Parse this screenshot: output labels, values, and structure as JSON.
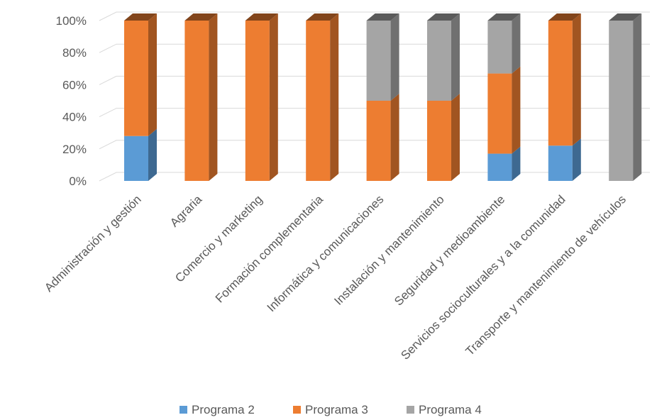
{
  "chart_data": {
    "type": "bar",
    "stacked": "percent",
    "categories": [
      "Administración y gestión",
      "Agraria",
      "Comercio y marketing",
      "Formación complementaria",
      "Informática y comunicaciones",
      "Instalación y mantenimiento",
      "Seguridad y medioambiente",
      "Servicios socioculturales y a la comunidad",
      "Transporte y mantenimiento de vehículos"
    ],
    "series": [
      {
        "name": "Programa 2",
        "color": "#5B9BD5",
        "values": [
          28,
          0,
          0,
          0,
          0,
          0,
          17,
          22,
          0
        ]
      },
      {
        "name": "Programa 3",
        "color": "#ED7D31",
        "values": [
          72,
          100,
          100,
          100,
          50,
          50,
          50,
          78,
          0
        ]
      },
      {
        "name": "Programa 4",
        "color": "#A5A5A5",
        "values": [
          0,
          0,
          0,
          0,
          50,
          50,
          33,
          0,
          100
        ]
      }
    ],
    "y_ticks": [
      "0%",
      "20%",
      "40%",
      "60%",
      "80%",
      "100%"
    ],
    "ylim": [
      0,
      100
    ],
    "grid": true,
    "legend_position": "bottom"
  }
}
